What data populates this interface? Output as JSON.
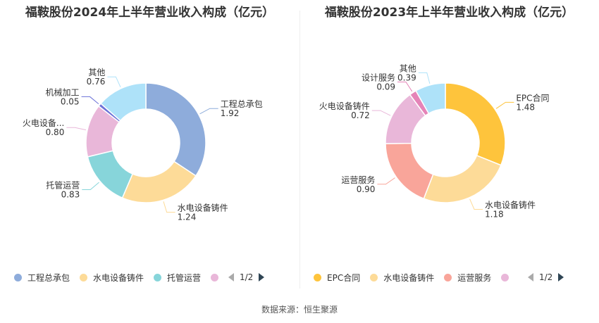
{
  "chart_data": [
    {
      "type": "pie",
      "title": "福鞍股份2024年上半年营业收入构成（亿元）",
      "categories": [
        "工程总承包",
        "水电设备铸件",
        "托管运营",
        "火电设备...",
        "机械加工",
        "其他"
      ],
      "values": [
        1.92,
        1.24,
        0.83,
        0.8,
        0.05,
        0.76
      ],
      "labels": [
        "1.92",
        "1.24",
        "0.83",
        "0.80",
        "0.05",
        "0.76"
      ],
      "colors": [
        "#8eacdb",
        "#fddb98",
        "#87d5da",
        "#e9b7d9",
        "#6b72d8",
        "#aee2f9"
      ],
      "legend": {
        "placement": "bottom-left",
        "items": [
          "工程总承包",
          "水电设备铸件",
          "托管运营",
          ""
        ],
        "page": "1/2"
      }
    },
    {
      "type": "pie",
      "title": "福鞍股份2023年上半年营业收入构成（亿元）",
      "categories": [
        "EPC合同",
        "水电设备铸件",
        "运营服务",
        "火电设备铸件",
        "设计服务",
        "其他"
      ],
      "values": [
        1.48,
        1.18,
        0.9,
        0.72,
        0.09,
        0.39
      ],
      "labels": [
        "1.48",
        "1.18",
        "0.90",
        "0.72",
        "0.09",
        "0.39"
      ],
      "colors": [
        "#fec43c",
        "#fddb98",
        "#f9a59a",
        "#e9b7d9",
        "#e584b8",
        "#aee2f9"
      ],
      "legend": {
        "placement": "bottom-left",
        "items": [
          "EPC合同",
          "水电设备铸件",
          "运营服务",
          ""
        ],
        "page": "1/2"
      }
    }
  ],
  "source": "数据来源：恒生聚源"
}
